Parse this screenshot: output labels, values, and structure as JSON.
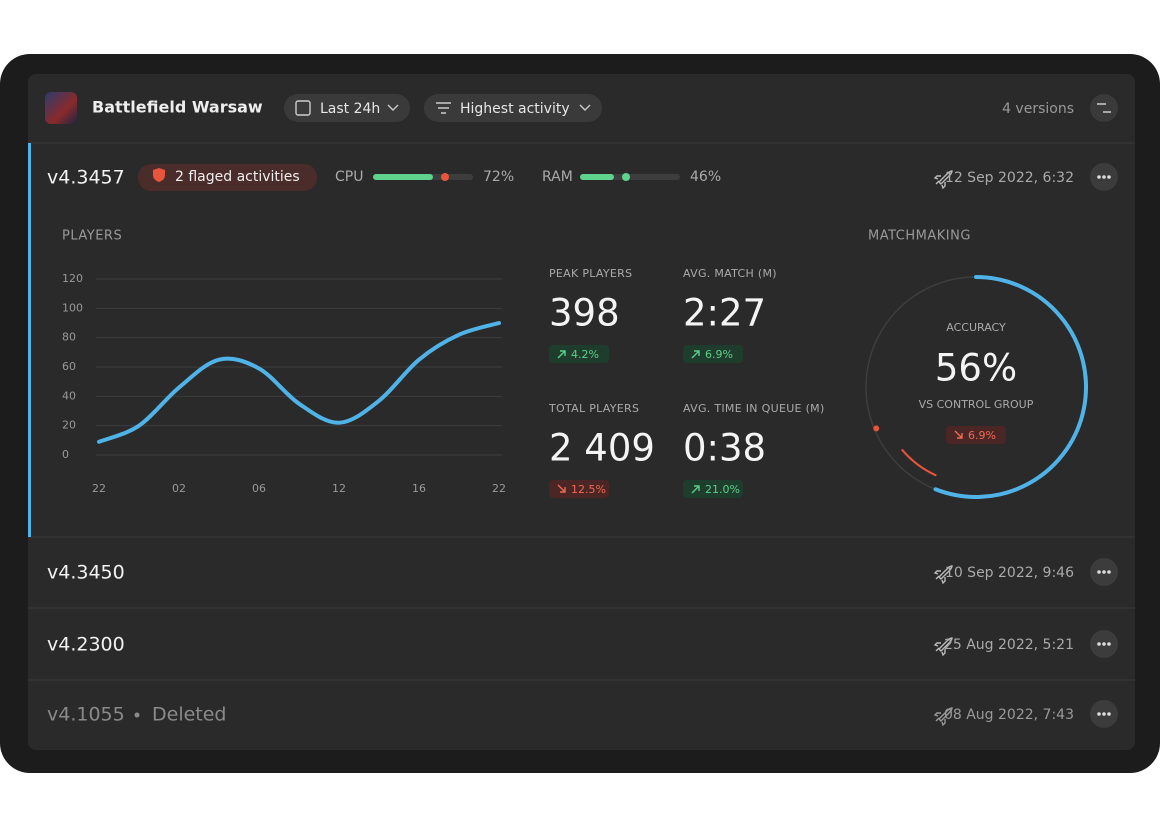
{
  "header": {
    "title": "Battlefield Warsaw",
    "filters": [
      "Last 24h",
      "Highest activity"
    ],
    "versions_count": "4 versions"
  },
  "versions": [
    {
      "version": "v4.3457",
      "flag": "2 flaged activities",
      "date": "12 Sep 2022, 6:32",
      "metrics": [
        {
          "label": "CPU",
          "value": 72,
          "value_label": "72%",
          "color": "#5fd38d",
          "dot_color": "#e8553d"
        },
        {
          "label": "RAM",
          "value": 46,
          "value_label": "46%",
          "color": "#5fd38d",
          "dot_color": "#5fd38d"
        }
      ]
    },
    {
      "version": "v4.3450",
      "date": "10 Sep 2022, 9:46"
    },
    {
      "version": "v4.2300",
      "date": "25 Aug 2022, 5:21"
    },
    {
      "version": "v4.1055",
      "status": "Deleted",
      "date": "08 Aug 2022, 7:43"
    }
  ],
  "stats": [
    {
      "label": "PEAK PLAYERS",
      "value": "398",
      "change": "4.2%",
      "trend": "up"
    },
    {
      "label": "AVG. MATCH (M)",
      "value": "2:27",
      "change": "6.9%",
      "trend": "up"
    },
    {
      "label": "TOTAL PLAYERS",
      "value": "2 409",
      "change": "12.5%",
      "trend": "down"
    },
    {
      "label": "AVG. TIME IN QUEUE (M)",
      "value": "0:38",
      "change": "21.0%",
      "trend": "up"
    }
  ],
  "chart_data": [
    {
      "type": "line",
      "title": "PLAYERS",
      "categories": [
        "22",
        null,
        "02",
        null,
        "06",
        null,
        "12",
        null,
        "16",
        null,
        "22"
      ],
      "values": [
        9,
        20,
        46,
        65,
        59,
        35,
        22,
        37,
        65,
        82,
        90
      ],
      "color": "#4fb3e8",
      "ylim": [
        0,
        120
      ],
      "yticks": [
        0,
        20,
        40,
        60,
        80,
        100,
        120
      ],
      "grid": true
    },
    {
      "type": "gauge",
      "title": "MATCHMAKING",
      "label": "ACCURACY",
      "value": 56,
      "value_label": "56%",
      "sublabel": "VS CONTROL GROUP",
      "change": 6.9,
      "change_label": "6.9%",
      "trend": "down",
      "color": "#4fb3e8",
      "change_color": "#e8553d"
    }
  ]
}
